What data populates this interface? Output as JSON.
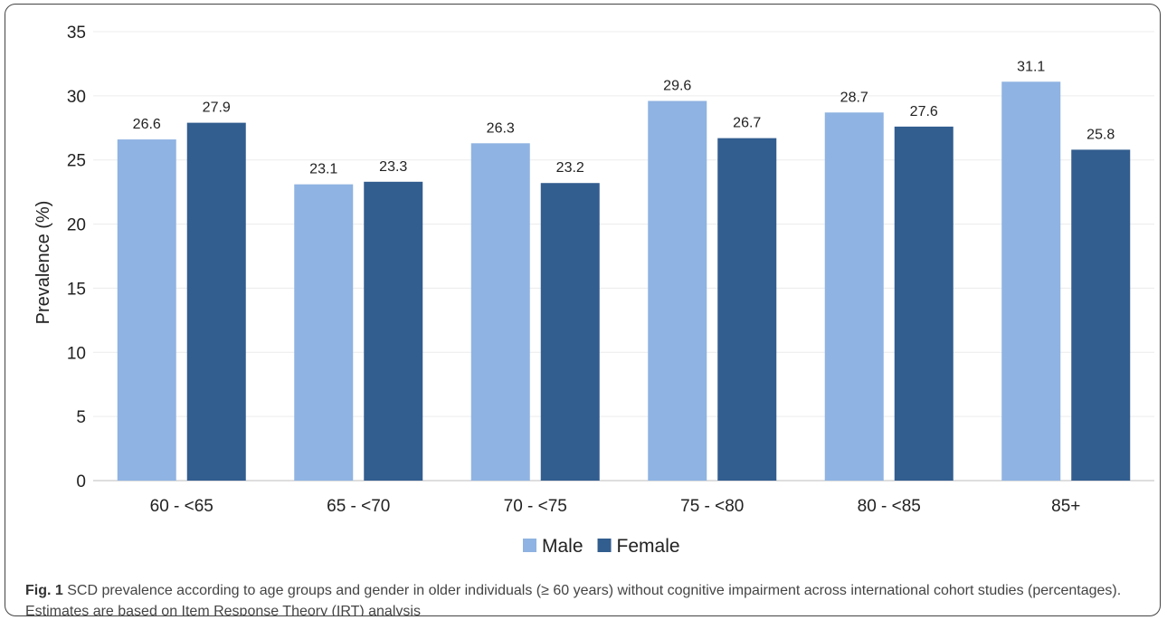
{
  "chart_data": {
    "type": "bar",
    "categories": [
      "60 - <65",
      "65 - <70",
      "70 - <75",
      "75 - <80",
      "80 - <85",
      "85+"
    ],
    "series": [
      {
        "name": "Male",
        "values": [
          26.6,
          23.1,
          26.3,
          29.6,
          28.7,
          31.1
        ],
        "color": "#8fb3e2"
      },
      {
        "name": "Female",
        "values": [
          27.9,
          23.3,
          23.2,
          26.7,
          27.6,
          25.8
        ],
        "color": "#325d8f"
      }
    ],
    "ylabel": "Prevalence  (%)",
    "ylim": [
      0,
      35
    ],
    "yticks": [
      0,
      5,
      10,
      15,
      20,
      25,
      30,
      35
    ],
    "grid": true,
    "legend_position": "bottom-center",
    "data_labels": true
  },
  "caption": {
    "label": "Fig. 1",
    "text": " SCD prevalence according to age groups and gender in older individuals (≥ 60 years) without cognitive impairment across international cohort studies (percentages). Estimates are based on Item Response Theory (IRT) analysis"
  }
}
